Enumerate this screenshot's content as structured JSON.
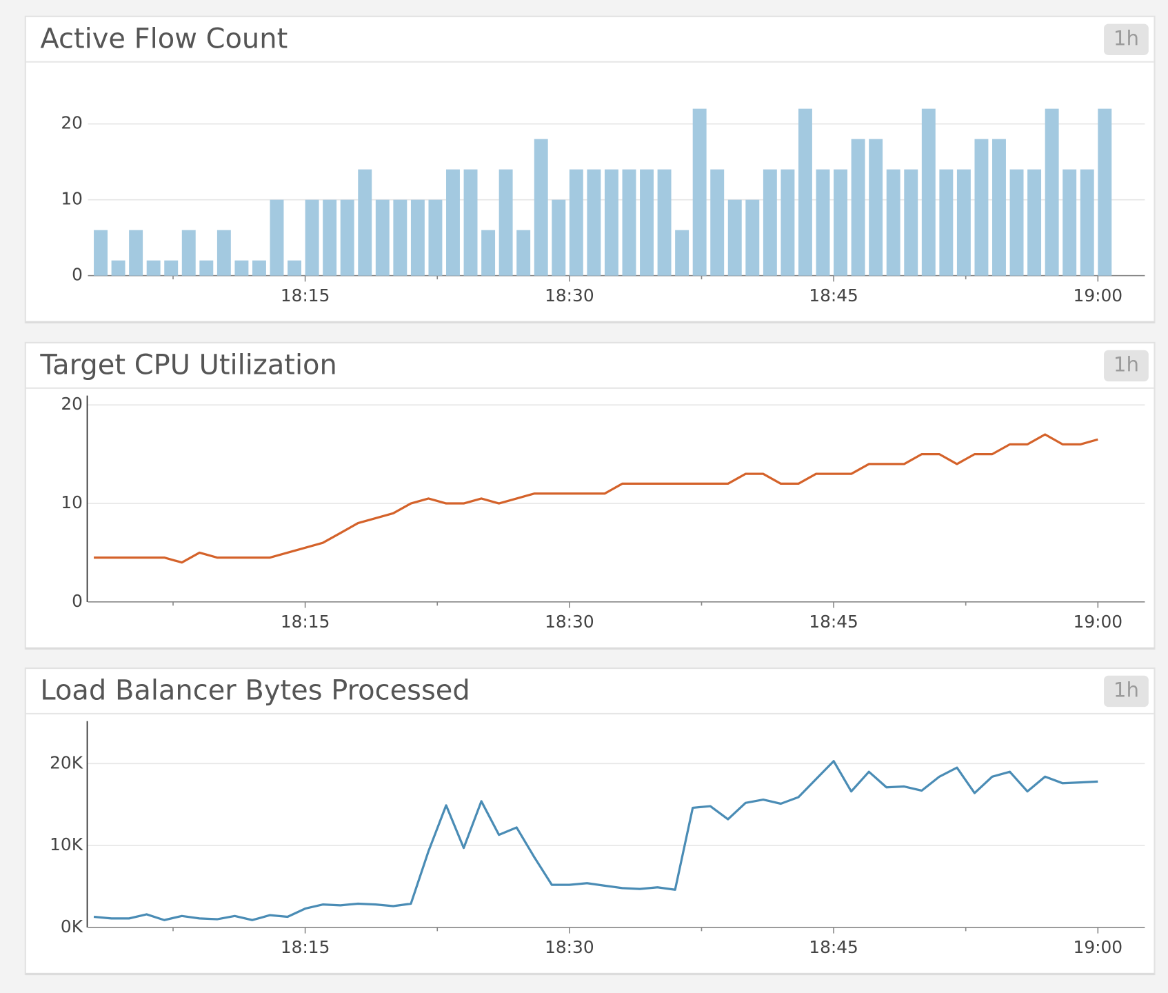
{
  "chart_data": [
    {
      "type": "bar",
      "title": "Active Flow Count",
      "time_range": "1h",
      "color": "#a3c9e0",
      "x": [
        "18:03",
        "18:04",
        "18:05",
        "18:06",
        "18:07",
        "18:08",
        "18:09",
        "18:10",
        "18:11",
        "18:12",
        "18:13",
        "18:14",
        "18:15",
        "18:16",
        "18:17",
        "18:18",
        "18:19",
        "18:20",
        "18:21",
        "18:22",
        "18:23",
        "18:24",
        "18:25",
        "18:26",
        "18:27",
        "18:28",
        "18:29",
        "18:30",
        "18:31",
        "18:32",
        "18:33",
        "18:34",
        "18:35",
        "18:36",
        "18:37",
        "18:38",
        "18:39",
        "18:40",
        "18:41",
        "18:42",
        "18:43",
        "18:44",
        "18:45",
        "18:46",
        "18:47",
        "18:48",
        "18:49",
        "18:50",
        "18:51",
        "18:52",
        "18:53",
        "18:54",
        "18:55",
        "18:56",
        "18:57",
        "18:58",
        "18:59",
        "19:00"
      ],
      "values": [
        6,
        2,
        6,
        2,
        2,
        6,
        2,
        6,
        2,
        2,
        10,
        2,
        10,
        10,
        10,
        14,
        10,
        10,
        10,
        10,
        14,
        14,
        6,
        14,
        6,
        18,
        10,
        14,
        14,
        14,
        14,
        14,
        14,
        6,
        22,
        14,
        10,
        10,
        14,
        14,
        22,
        14,
        14,
        18,
        18,
        14,
        14,
        22,
        14,
        14,
        18,
        18,
        14,
        14,
        22,
        14,
        14,
        22
      ],
      "xlim": [
        "18:02:40",
        "19:02:40"
      ],
      "xticks": [
        "18:15",
        "18:30",
        "18:45",
        "19:00"
      ],
      "x_minor_ticks": [
        "18:07:30",
        "18:22:30",
        "18:37:30",
        "18:52:30"
      ],
      "ylim": [
        0,
        27
      ],
      "yticks": [
        0,
        10,
        20
      ],
      "grid": true,
      "y_axis_line": false
    },
    {
      "type": "line",
      "title": "Target CPU Utilization",
      "time_range": "1h",
      "color": "#d4622a",
      "x": [
        "18:03",
        "18:04",
        "18:05",
        "18:06",
        "18:07",
        "18:08",
        "18:09",
        "18:10",
        "18:11",
        "18:12",
        "18:13",
        "18:14",
        "18:15",
        "18:16",
        "18:17",
        "18:18",
        "18:19",
        "18:20",
        "18:21",
        "18:22",
        "18:23",
        "18:24",
        "18:25",
        "18:26",
        "18:27",
        "18:28",
        "18:29",
        "18:30",
        "18:31",
        "18:32",
        "18:33",
        "18:34",
        "18:35",
        "18:36",
        "18:37",
        "18:38",
        "18:39",
        "18:40",
        "18:41",
        "18:42",
        "18:43",
        "18:44",
        "18:45",
        "18:46",
        "18:47",
        "18:48",
        "18:49",
        "18:50",
        "18:51",
        "18:52",
        "18:53",
        "18:54",
        "18:55",
        "18:56",
        "18:57",
        "18:58",
        "18:59",
        "19:00"
      ],
      "values": [
        4.5,
        4.5,
        4.5,
        4.5,
        4.5,
        4,
        5,
        4.5,
        4.5,
        4.5,
        4.5,
        5,
        5.5,
        6,
        7,
        8,
        8.5,
        9,
        10,
        10.5,
        10,
        10,
        10.5,
        10,
        10.5,
        11,
        11,
        11,
        11,
        11,
        12,
        12,
        12,
        12,
        12,
        12,
        12,
        13,
        13,
        12,
        12,
        13,
        13,
        13,
        14,
        14,
        14,
        15,
        15,
        14,
        15,
        15,
        16,
        16,
        17,
        16,
        16,
        16.5
      ],
      "xlim": [
        "18:02:40",
        "19:02:40"
      ],
      "xticks": [
        "18:15",
        "18:30",
        "18:45",
        "19:00"
      ],
      "x_minor_ticks": [
        "18:07:30",
        "18:22:30",
        "18:37:30",
        "18:52:30"
      ],
      "ylim": [
        0,
        20.8
      ],
      "yticks": [
        0,
        10,
        20
      ],
      "grid": true,
      "y_axis_line": true
    },
    {
      "type": "line",
      "title": "Load Balancer Bytes Processed",
      "time_range": "1h",
      "color": "#4a8cb5",
      "x": [
        "18:03",
        "18:04",
        "18:05",
        "18:06",
        "18:07",
        "18:08",
        "18:09",
        "18:10",
        "18:11",
        "18:12",
        "18:13",
        "18:14",
        "18:15",
        "18:16",
        "18:17",
        "18:18",
        "18:19",
        "18:20",
        "18:21",
        "18:22",
        "18:23",
        "18:24",
        "18:25",
        "18:26",
        "18:27",
        "18:28",
        "18:29",
        "18:30",
        "18:31",
        "18:32",
        "18:33",
        "18:34",
        "18:35",
        "18:36",
        "18:37",
        "18:38",
        "18:39",
        "18:40",
        "18:41",
        "18:42",
        "18:43",
        "18:44",
        "18:45",
        "18:46",
        "18:47",
        "18:48",
        "18:49",
        "18:50",
        "18:51",
        "18:52",
        "18:53",
        "18:54",
        "18:55",
        "18:56",
        "18:57",
        "18:58",
        "18:59",
        "19:00"
      ],
      "values": [
        1300,
        1100,
        1100,
        1600,
        900,
        1400,
        1100,
        1000,
        1400,
        900,
        1500,
        1300,
        2300,
        2800,
        2700,
        2900,
        2800,
        2600,
        2900,
        9300,
        14900,
        9700,
        15400,
        11300,
        12200,
        8600,
        5200,
        5200,
        5400,
        5100,
        4800,
        4700,
        4900,
        4600,
        14600,
        14800,
        13200,
        15200,
        15600,
        15100,
        15900,
        18100,
        20300,
        16600,
        19000,
        17100,
        17200,
        16700,
        18400,
        19500,
        16400,
        18400,
        19000,
        16600,
        18400,
        17600,
        17700,
        17800
      ],
      "xlim": [
        "18:02:40",
        "19:02:40"
      ],
      "xticks": [
        "18:15",
        "18:30",
        "18:45",
        "19:00"
      ],
      "x_minor_ticks": [
        "18:07:30",
        "18:22:30",
        "18:37:30",
        "18:52:30"
      ],
      "ylim": [
        0,
        25000
      ],
      "yticks": [
        {
          "value": 0,
          "label": "0K"
        },
        {
          "value": 10000,
          "label": "10K"
        },
        {
          "value": 20000,
          "label": "20K"
        }
      ],
      "grid": true,
      "y_axis_line": true
    }
  ]
}
